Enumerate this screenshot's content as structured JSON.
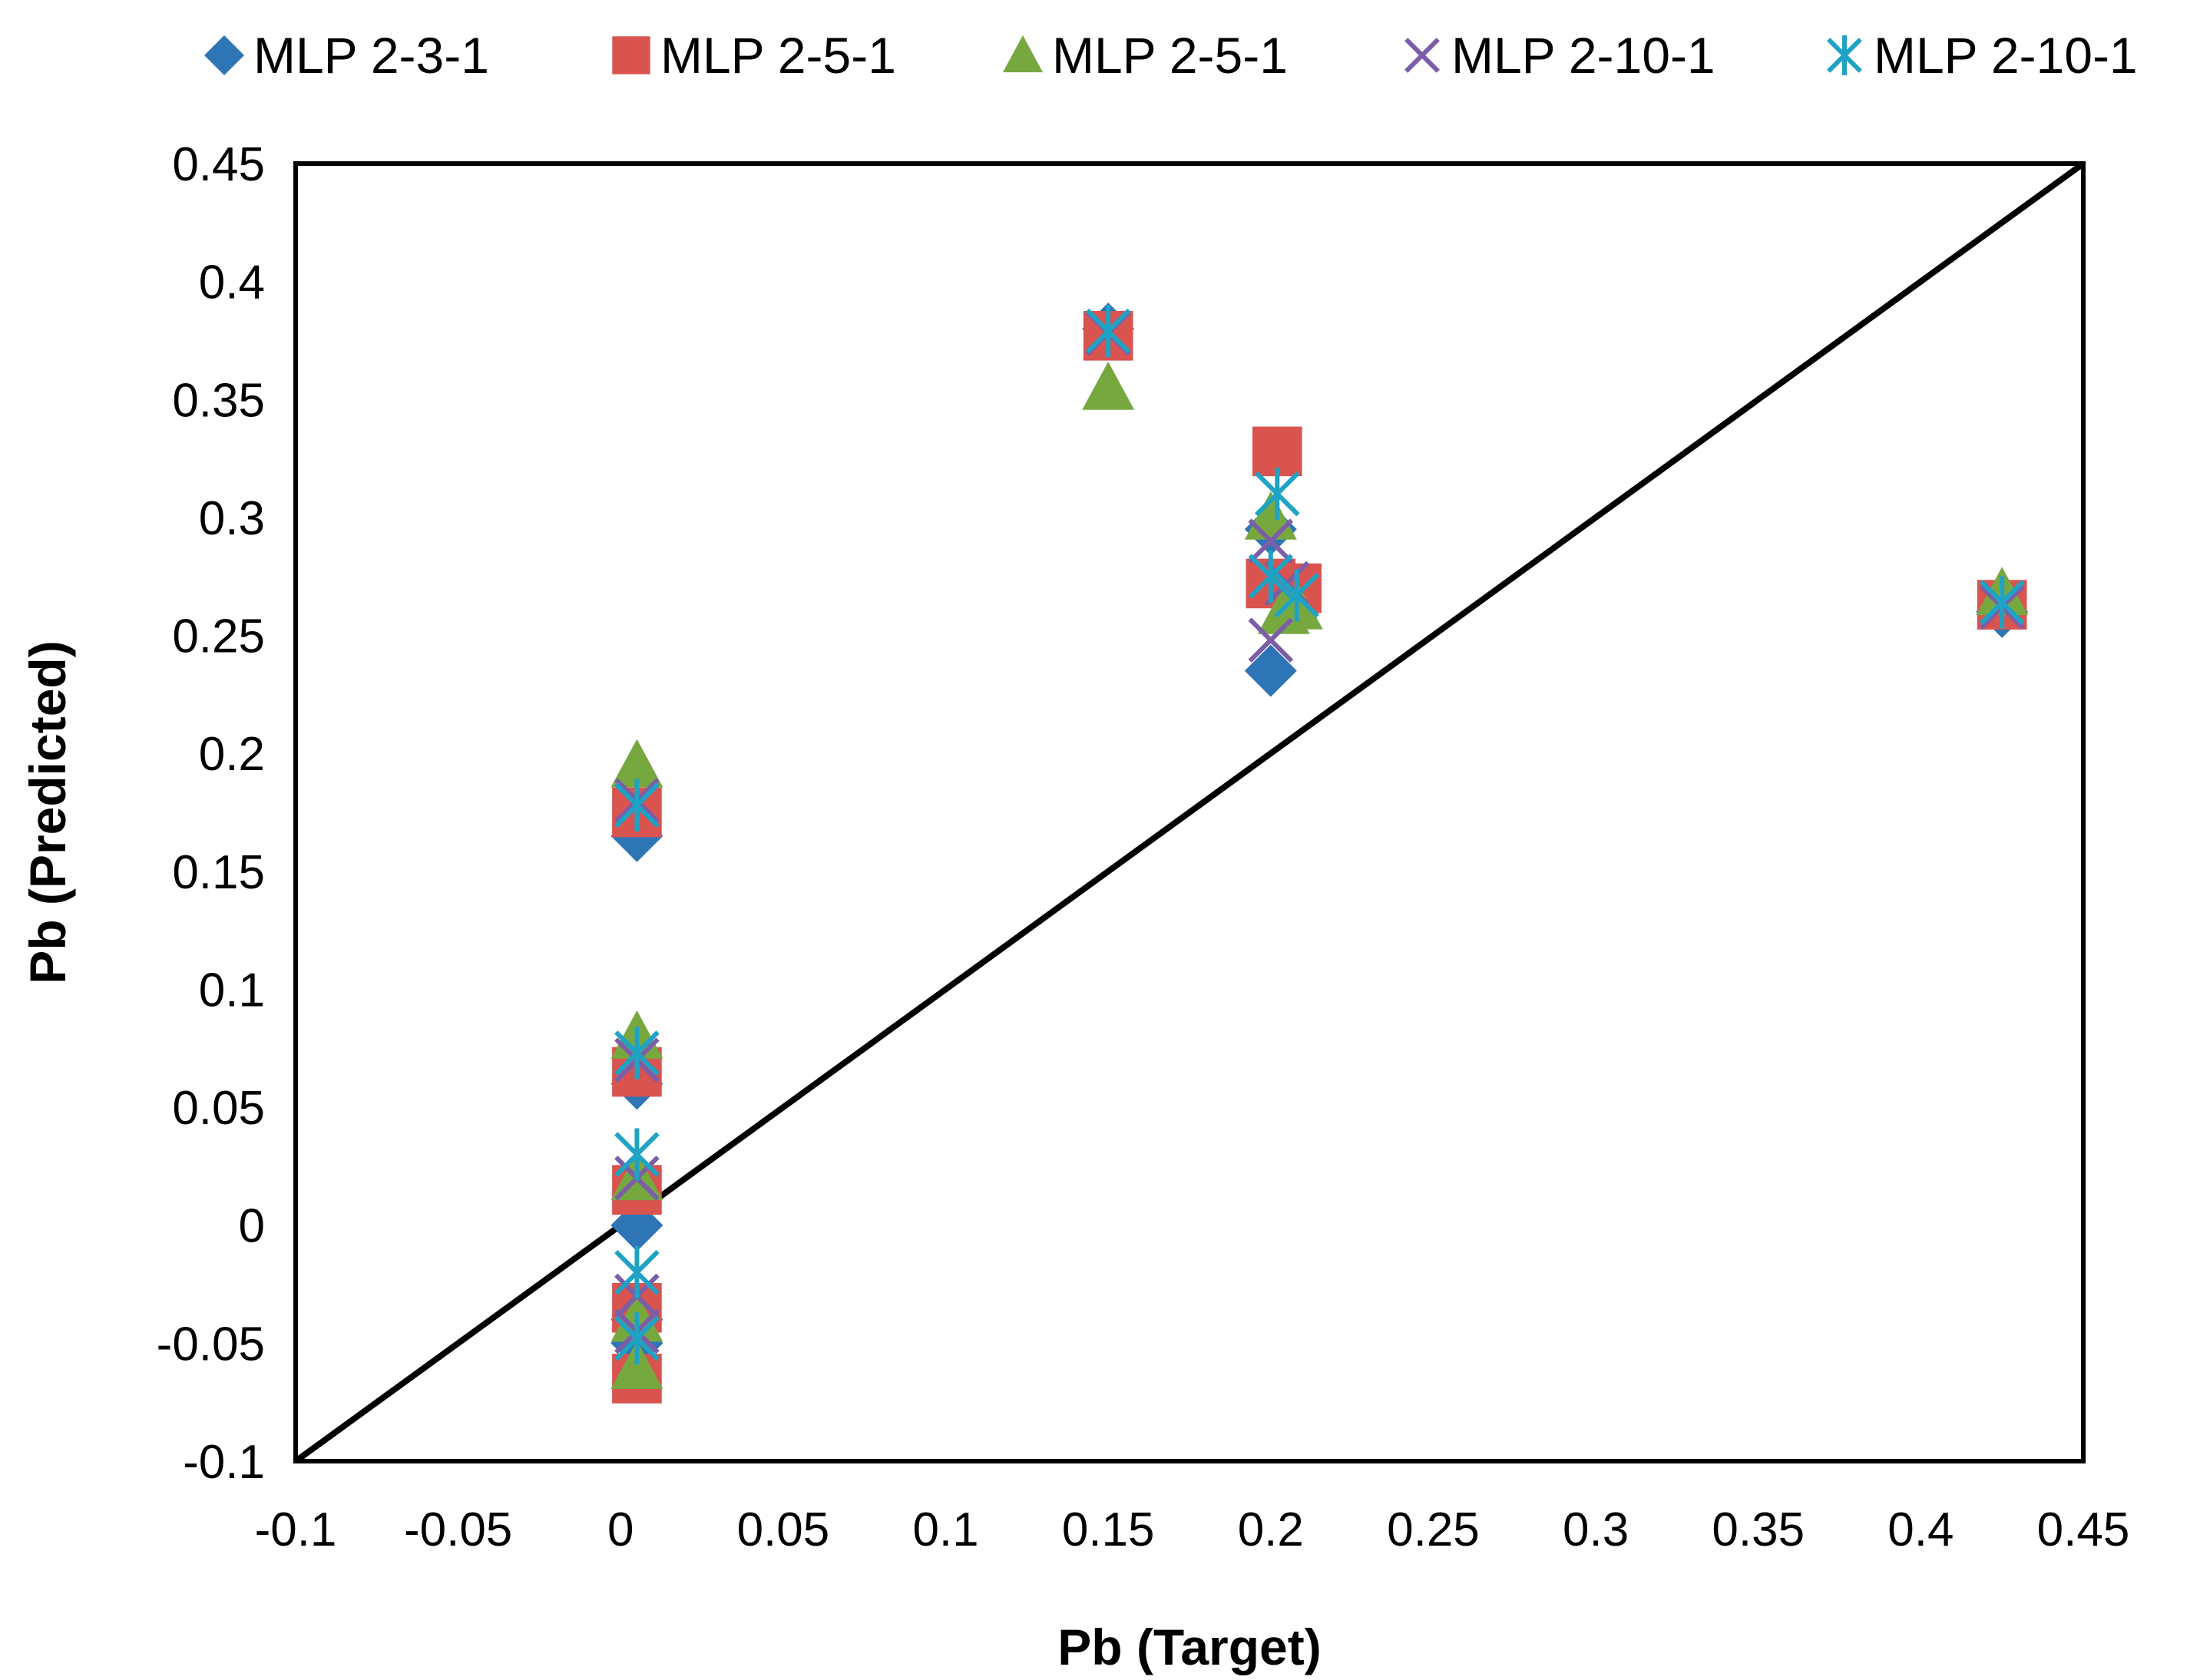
{
  "chart_data": {
    "type": "scatter",
    "title": "",
    "xlabel": "Pb (Target)",
    "ylabel": "Pb (Predicted)",
    "xlim": [
      -0.1,
      0.45
    ],
    "ylim": [
      -0.1,
      0.45
    ],
    "xticks": [
      "-0.1",
      "-0.05",
      "0",
      "0.05",
      "0.1",
      "0.15",
      "0.2",
      "0.25",
      "0.3",
      "0.35",
      "0.4",
      "0.45"
    ],
    "yticks": [
      "-0.1",
      "-0.05",
      "0",
      "0.05",
      "0.1",
      "0.15",
      "0.2",
      "0.25",
      "0.3",
      "0.35",
      "0.4",
      "0.45"
    ],
    "grid": false,
    "legend_position": "top",
    "reference_line": {
      "x": [
        -0.1,
        0.45
      ],
      "y": [
        -0.1,
        0.45
      ],
      "color": "#000000"
    },
    "series": [
      {
        "name": "MLP 2-3-1",
        "marker": "diamond",
        "color": "#2E75B6",
        "points": [
          [
            0.005,
            0.165
          ],
          [
            0.005,
            0.06
          ],
          [
            0.005,
            0.0
          ],
          [
            0.005,
            -0.04
          ],
          [
            0.005,
            -0.05
          ],
          [
            0.15,
            0.38
          ],
          [
            0.2,
            0.235
          ],
          [
            0.2,
            0.295
          ],
          [
            0.205,
            0.27
          ],
          [
            0.425,
            0.26
          ]
        ]
      },
      {
        "name": "MLP 2-5-1",
        "marker": "square",
        "color": "#D9534F",
        "points": [
          [
            0.005,
            0.175
          ],
          [
            0.005,
            0.065
          ],
          [
            0.005,
            0.015
          ],
          [
            0.005,
            -0.035
          ],
          [
            0.005,
            -0.065
          ],
          [
            0.15,
            0.377
          ],
          [
            0.202,
            0.328
          ],
          [
            0.2,
            0.272
          ],
          [
            0.208,
            0.27
          ],
          [
            0.425,
            0.263
          ]
        ]
      },
      {
        "name": "MLP 2-5-1",
        "marker": "triangle",
        "color": "#77A840",
        "points": [
          [
            0.005,
            0.195
          ],
          [
            0.005,
            0.08
          ],
          [
            0.005,
            0.02
          ],
          [
            0.005,
            -0.04
          ],
          [
            0.005,
            -0.06
          ],
          [
            0.15,
            0.355
          ],
          [
            0.2,
            0.3
          ],
          [
            0.204,
            0.26
          ],
          [
            0.208,
            0.262
          ],
          [
            0.425,
            0.268
          ]
        ]
      },
      {
        "name": "MLP 2-10-1",
        "marker": "x",
        "color": "#7B5EA7",
        "points": [
          [
            0.005,
            0.18
          ],
          [
            0.005,
            0.07
          ],
          [
            0.005,
            0.02
          ],
          [
            0.005,
            -0.03
          ],
          [
            0.005,
            -0.045
          ],
          [
            0.15,
            0.378
          ],
          [
            0.2,
            0.29
          ],
          [
            0.2,
            0.248
          ],
          [
            0.205,
            0.272
          ],
          [
            0.425,
            0.262
          ]
        ]
      },
      {
        "name": "MLP 2-10-1",
        "marker": "asterisk",
        "color": "#1FA3C4",
        "points": [
          [
            0.005,
            0.178
          ],
          [
            0.005,
            0.073
          ],
          [
            0.005,
            0.03
          ],
          [
            0.005,
            -0.02
          ],
          [
            0.005,
            -0.048
          ],
          [
            0.15,
            0.379
          ],
          [
            0.202,
            0.31
          ],
          [
            0.2,
            0.275
          ],
          [
            0.208,
            0.267
          ],
          [
            0.425,
            0.264
          ]
        ]
      }
    ]
  }
}
